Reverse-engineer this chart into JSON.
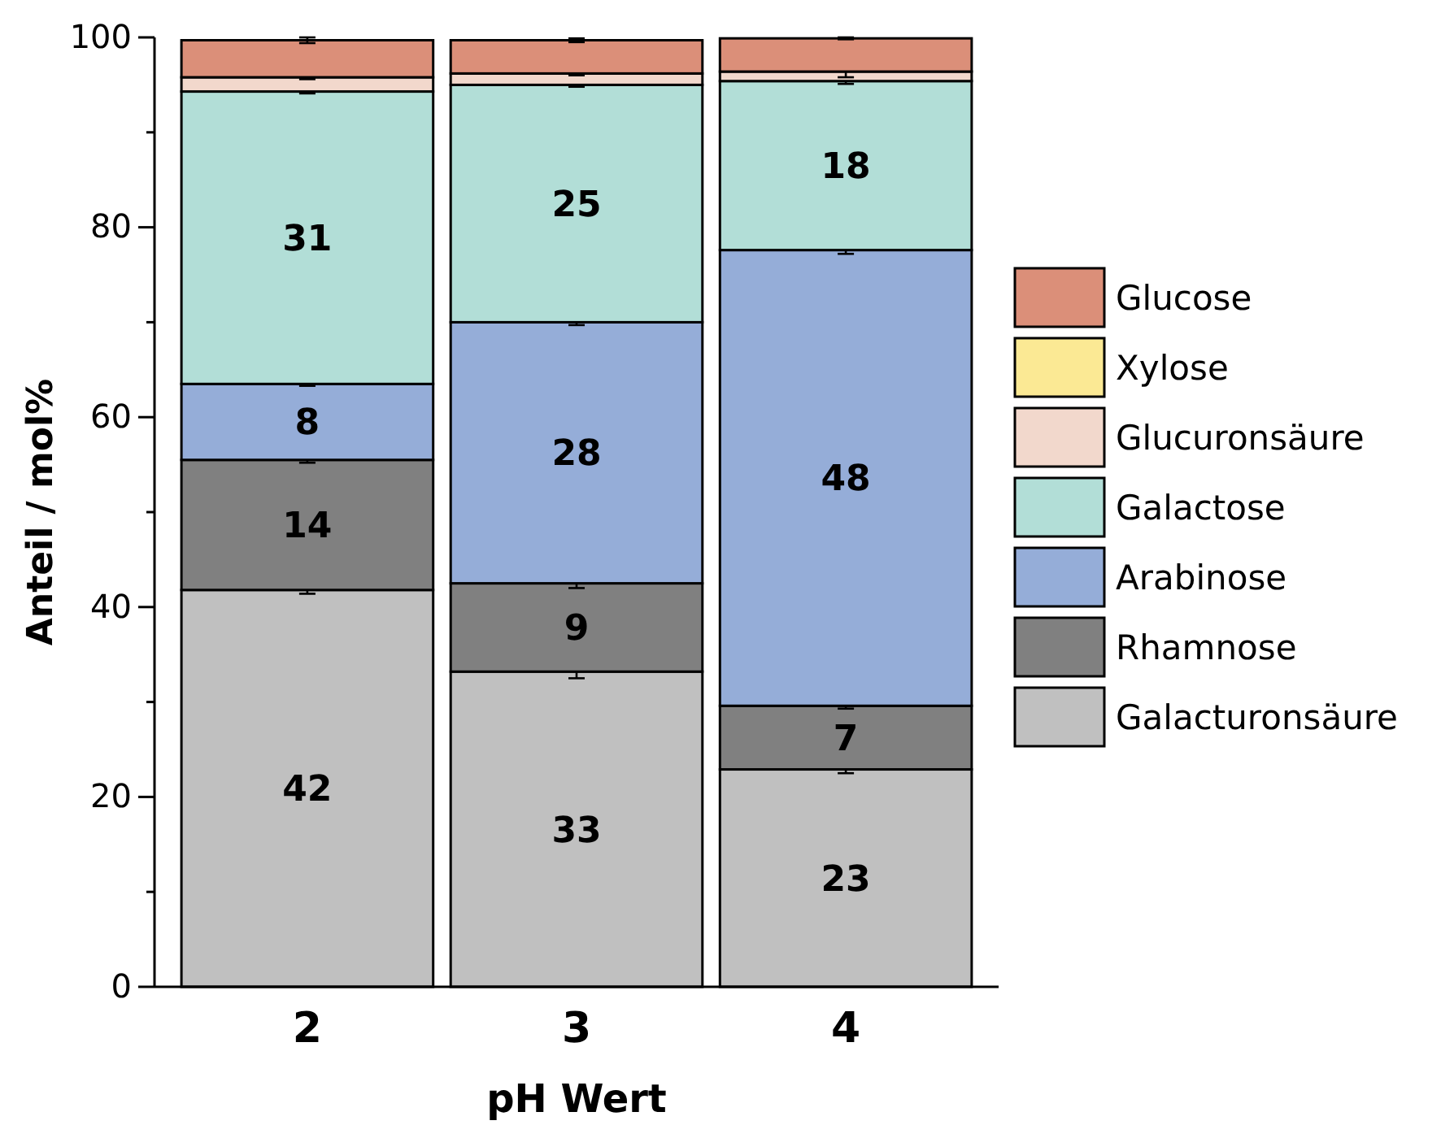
{
  "chart_data": {
    "type": "bar",
    "stacked": true,
    "xlabel": "pH Wert",
    "ylabel": "Anteil / mol%",
    "categories": [
      "2",
      "3",
      "4"
    ],
    "ylim": [
      0,
      100
    ],
    "yticks": [
      0,
      {
        "value": 10,
        "label": null
      },
      20,
      {
        "value": 30,
        "label": null
      },
      40,
      {
        "value": 50,
        "label": null
      },
      60,
      {
        "value": 70,
        "label": null
      },
      80,
      {
        "value": 90,
        "label": null
      },
      100
    ],
    "legend": "right",
    "series": [
      {
        "name": "Galacturonsäure",
        "color": "#c0c0c0",
        "values": [
          41.8,
          33.2,
          22.9
        ],
        "errors": [
          0.4,
          0.7,
          0.4
        ],
        "value_labels": [
          "42",
          "33",
          "23"
        ]
      },
      {
        "name": "Rhamnose",
        "color": "#808080",
        "values": [
          13.7,
          9.3,
          6.7
        ],
        "errors": [
          0.3,
          0.5,
          0.3
        ],
        "value_labels": [
          "14",
          "9",
          "7"
        ]
      },
      {
        "name": "Arabinose",
        "color": "#95add8",
        "values": [
          8.0,
          27.5,
          48.0
        ],
        "errors": [
          0.2,
          0.3,
          0.4
        ],
        "value_labels": [
          "8",
          "28",
          "48"
        ]
      },
      {
        "name": "Galactose",
        "color": "#b2ded7",
        "values": [
          30.8,
          25.0,
          17.8
        ],
        "errors": [
          0.2,
          0.2,
          0.3
        ],
        "value_labels": [
          "31",
          "25",
          "18"
        ]
      },
      {
        "name": "Glucuronsäure",
        "color": "#f2d8cc",
        "values": [
          1.5,
          1.2,
          1.0
        ],
        "errors": [
          0.2,
          0.2,
          0.6
        ],
        "value_labels": [
          null,
          null,
          null
        ]
      },
      {
        "name": "Xylose",
        "color": "#fbe994",
        "values": [
          null,
          null,
          null
        ],
        "errors": [
          null,
          null,
          null
        ],
        "value_labels": [
          null,
          null,
          null
        ]
      },
      {
        "name": "Glucose",
        "color": "#db8f79",
        "values": [
          3.9,
          3.5,
          3.5
        ],
        "errors": [
          0.3,
          0.2,
          0.1
        ],
        "value_labels": [
          null,
          null,
          null
        ]
      }
    ]
  }
}
